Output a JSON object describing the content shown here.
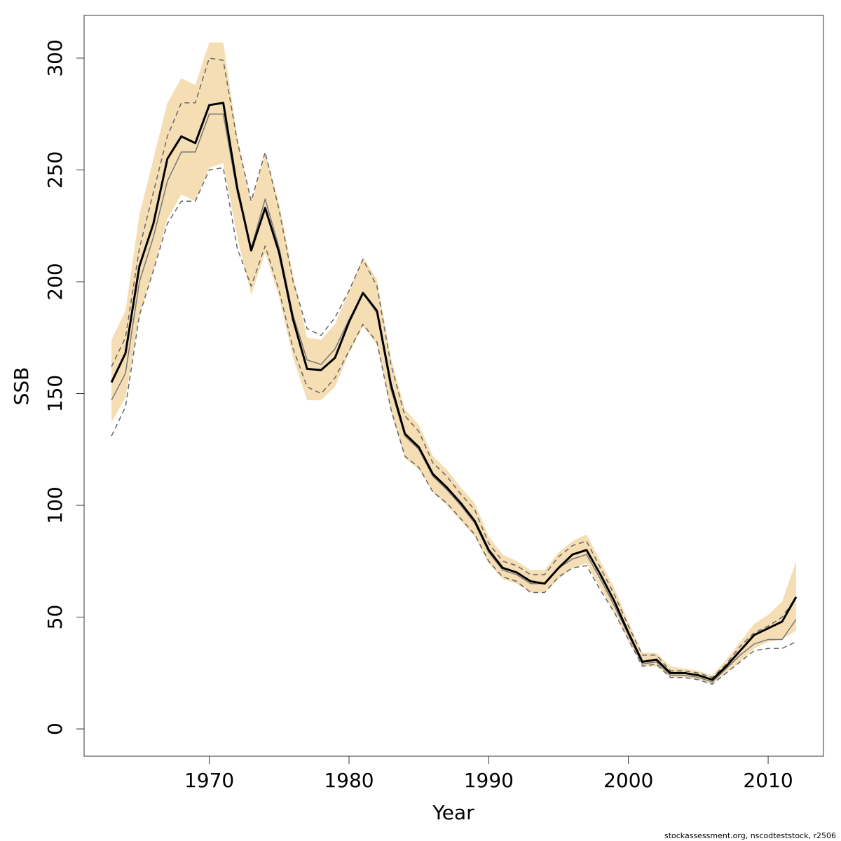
{
  "chart_data": {
    "type": "line",
    "x_label": "Year",
    "y_label": "SSB",
    "footnote": "stockassessment.org, nscodteststock, r2506",
    "x": [
      1963,
      1964,
      1965,
      1966,
      1967,
      1968,
      1969,
      1970,
      1971,
      1972,
      1973,
      1974,
      1975,
      1976,
      1977,
      1978,
      1979,
      1980,
      1981,
      1982,
      1983,
      1984,
      1985,
      1986,
      1987,
      1988,
      1989,
      1990,
      1991,
      1992,
      1993,
      1994,
      1995,
      1996,
      1997,
      1998,
      1999,
      2000,
      2001,
      2002,
      2003,
      2004,
      2005,
      2006,
      2007,
      2008,
      2009,
      2010,
      2011,
      2012
    ],
    "band": {
      "color": "#f5deb3",
      "upper": [
        174,
        187,
        230,
        255,
        280,
        291,
        288,
        307,
        307,
        265,
        235,
        258,
        235,
        203,
        175,
        174,
        181,
        196,
        211,
        201,
        166,
        143,
        136,
        122,
        116,
        108,
        101,
        86,
        78,
        75,
        71,
        71,
        79,
        84,
        87,
        75,
        63,
        48,
        34,
        34,
        28,
        27,
        26,
        24,
        31,
        39,
        47,
        51,
        57,
        75
      ],
      "lower": [
        137,
        148,
        185,
        205,
        228,
        239,
        236,
        251,
        253,
        220,
        194,
        213,
        193,
        166,
        147,
        147,
        153,
        168,
        180,
        172,
        142,
        121,
        116,
        106,
        100,
        93,
        86,
        74,
        67,
        65,
        61,
        61,
        67,
        72,
        74,
        63,
        52,
        39,
        28,
        28,
        23,
        23,
        22,
        20,
        25,
        30,
        36,
        39,
        40,
        44
      ]
    },
    "series": [
      {
        "color": "#666666",
        "style": "dashed",
        "width": 1.5,
        "values": [
          162,
          175,
          215,
          240,
          265,
          280,
          280,
          300,
          299,
          263,
          236,
          258,
          232,
          200,
          179,
          176,
          184,
          196,
          210,
          198,
          163,
          140,
          133,
          119,
          113,
          105,
          98,
          83,
          75,
          73,
          69,
          69,
          77,
          82,
          84,
          72,
          60,
          46,
          33,
          33,
          26,
          26,
          25,
          23,
          29,
          37,
          43,
          46,
          50,
          59
        ]
      },
      {
        "color": "#666666",
        "style": "dashed",
        "width": 1.5,
        "values": [
          131,
          144,
          185,
          205,
          226,
          236,
          236,
          250,
          251,
          215,
          198,
          216,
          196,
          170,
          153,
          150,
          157,
          169,
          181,
          173,
          143,
          122,
          117,
          106,
          101,
          94,
          87,
          75,
          68,
          66,
          61,
          61,
          68,
          72,
          73,
          62,
          52,
          40,
          28,
          29,
          23,
          23,
          22,
          20,
          25,
          30,
          35,
          36,
          36,
          39
        ]
      },
      {
        "color": "#777777",
        "style": "solid",
        "width": 1.5,
        "values": [
          147,
          159,
          200,
          220,
          245,
          258,
          258,
          275,
          275,
          240,
          215,
          237,
          215,
          185,
          165,
          163,
          170,
          183,
          195,
          186,
          152,
          131,
          125,
          113,
          107,
          100,
          92,
          79,
          71,
          69,
          65,
          65,
          72,
          76,
          78,
          67,
          55,
          42,
          29,
          30,
          24,
          24,
          23,
          21,
          27,
          33,
          38,
          40,
          40,
          49
        ]
      },
      {
        "color": "#000000",
        "style": "solid",
        "width": 3,
        "values": [
          155,
          168,
          207,
          226,
          255,
          265,
          262,
          279,
          280,
          242,
          214,
          233,
          213,
          183,
          161,
          160.5,
          166,
          182,
          195,
          187,
          154,
          132,
          126,
          114,
          108,
          101,
          93,
          80,
          72,
          70,
          66,
          65,
          72,
          78,
          80,
          69,
          57,
          43,
          30,
          31,
          25,
          25,
          24,
          22,
          28,
          35,
          42,
          45,
          48,
          59
        ]
      }
    ],
    "xlim": [
      1961.04,
      2013.96
    ],
    "ylim": [
      -12.2,
      319.1
    ],
    "xticks": [
      1970,
      1980,
      1990,
      2000,
      2010
    ],
    "yticks": [
      0,
      50,
      100,
      150,
      200,
      250,
      300
    ]
  }
}
